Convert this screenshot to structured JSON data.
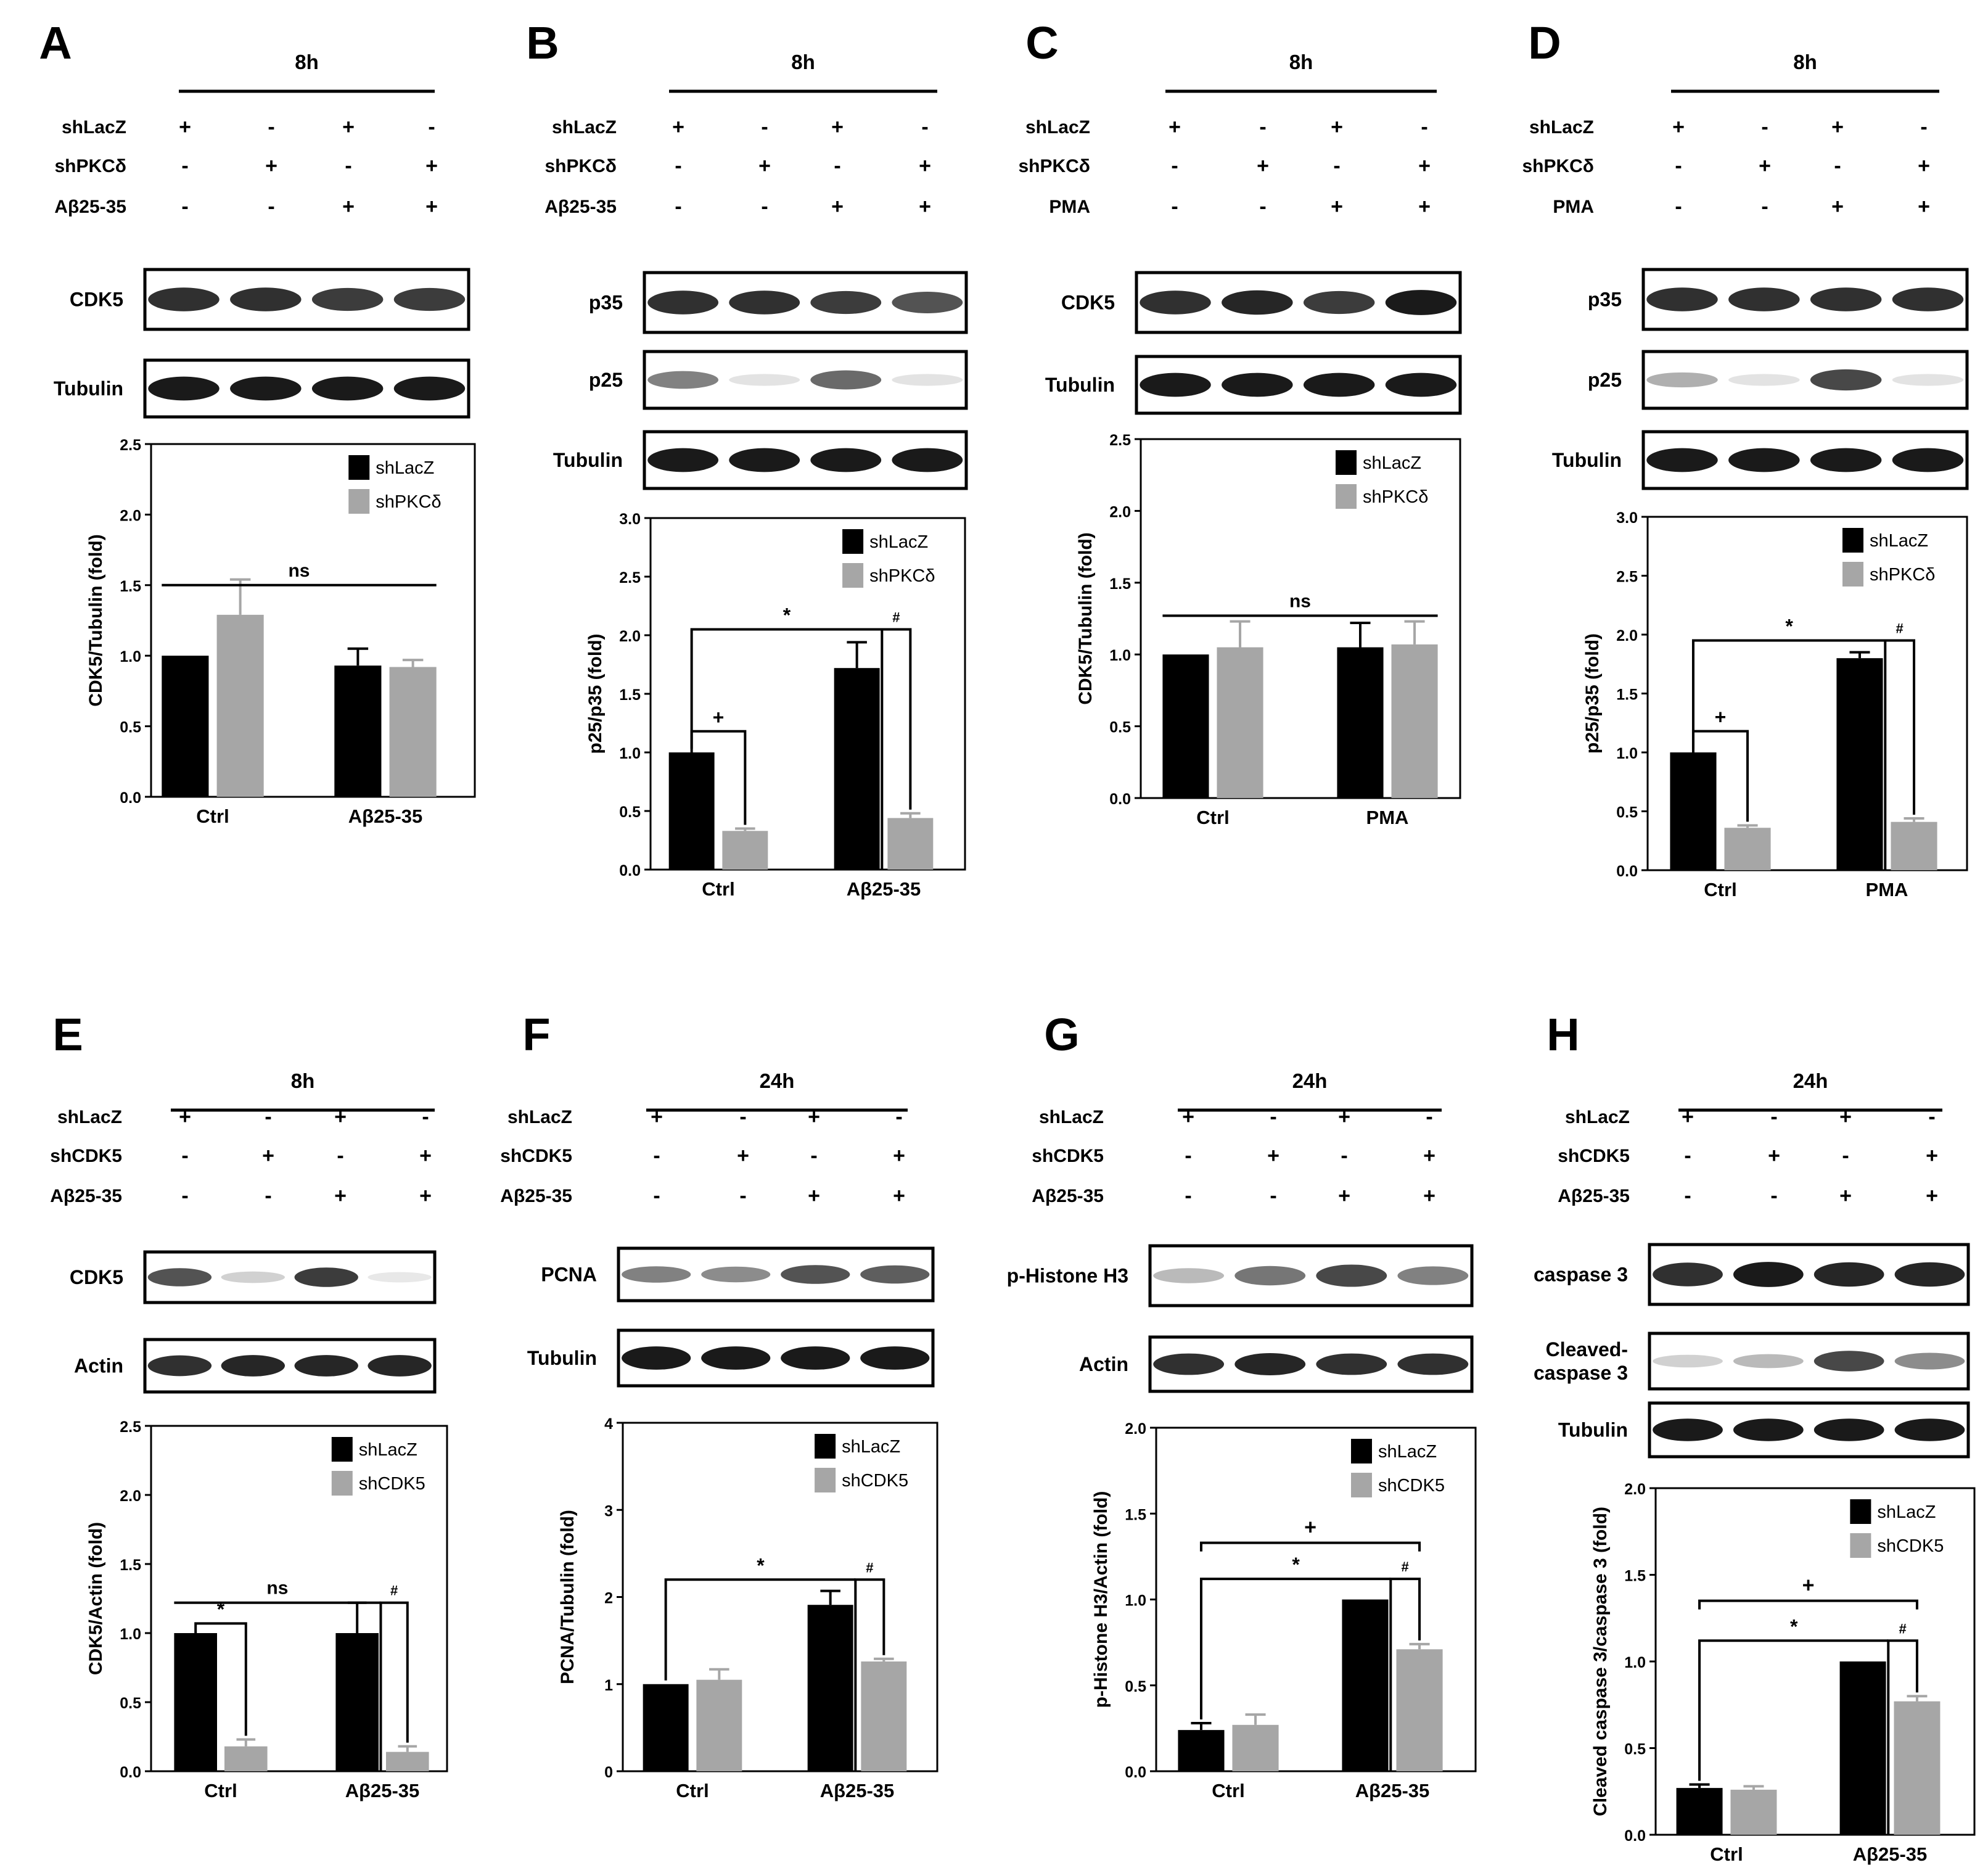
{
  "figure": {
    "colors": {
      "shLacZ": "#000000",
      "knockdown": "#a6a6a6",
      "frame": "#000000",
      "band": "#1a1a1a",
      "background": "#ffffff"
    },
    "symbols": {
      "plus": "+",
      "minus": "-"
    }
  },
  "panels": [
    {
      "letter": "A",
      "time": "8h",
      "conditions": [
        {
          "label": "shLacZ",
          "signs": [
            "+",
            "-",
            "+",
            "-"
          ]
        },
        {
          "label": "shPKCδ",
          "signs": [
            "-",
            "+",
            "-",
            "+"
          ]
        },
        {
          "label": "Aβ25-35",
          "signs": [
            "-",
            "-",
            "+",
            "+"
          ]
        }
      ],
      "blots": [
        {
          "label": "CDK5",
          "bands": [
            0.9,
            0.9,
            0.85,
            0.85
          ]
        },
        {
          "label": "Tubulin",
          "bands": [
            1.0,
            1.0,
            1.0,
            1.0
          ]
        }
      ]
    },
    {
      "letter": "B",
      "time": "8h",
      "conditions": [
        {
          "label": "shLacZ",
          "signs": [
            "+",
            "-",
            "+",
            "-"
          ]
        },
        {
          "label": "shPKCδ",
          "signs": [
            "-",
            "+",
            "-",
            "+"
          ]
        },
        {
          "label": "Aβ25-35",
          "signs": [
            "-",
            "-",
            "+",
            "+"
          ]
        }
      ],
      "blots": [
        {
          "label": "p35",
          "bands": [
            0.9,
            0.9,
            0.85,
            0.75
          ]
        },
        {
          "label": "p25",
          "bands": [
            0.55,
            0.12,
            0.65,
            0.12
          ]
        },
        {
          "label": "Tubulin",
          "bands": [
            1.0,
            1.0,
            1.0,
            1.0
          ]
        }
      ]
    },
    {
      "letter": "C",
      "time": "8h",
      "conditions": [
        {
          "label": "shLacZ",
          "signs": [
            "+",
            "-",
            "+",
            "-"
          ]
        },
        {
          "label": "shPKCδ",
          "signs": [
            "-",
            "+",
            "-",
            "+"
          ]
        },
        {
          "label": "PMA",
          "signs": [
            "-",
            "-",
            "+",
            "+"
          ]
        }
      ],
      "blots": [
        {
          "label": "CDK5",
          "bands": [
            0.9,
            0.95,
            0.85,
            1.0
          ]
        },
        {
          "label": "Tubulin",
          "bands": [
            1.0,
            1.0,
            1.0,
            1.0
          ]
        }
      ]
    },
    {
      "letter": "D",
      "time": "8h",
      "conditions": [
        {
          "label": "shLacZ",
          "signs": [
            "+",
            "-",
            "+",
            "-"
          ]
        },
        {
          "label": "shPKCδ",
          "signs": [
            "-",
            "+",
            "-",
            "+"
          ]
        },
        {
          "label": "PMA",
          "signs": [
            "-",
            "-",
            "+",
            "+"
          ]
        }
      ],
      "blots": [
        {
          "label": "p35",
          "bands": [
            0.9,
            0.9,
            0.9,
            0.9
          ]
        },
        {
          "label": "p25",
          "bands": [
            0.35,
            0.12,
            0.8,
            0.12
          ]
        },
        {
          "label": "Tubulin",
          "bands": [
            1.0,
            1.0,
            1.0,
            1.0
          ]
        }
      ]
    },
    {
      "letter": "E",
      "time": "8h",
      "conditions": [
        {
          "label": "shLacZ",
          "signs": [
            "+",
            "-",
            "+",
            "-"
          ]
        },
        {
          "label": "shCDK5",
          "signs": [
            "-",
            "+",
            "-",
            "+"
          ]
        },
        {
          "label": "Aβ25-35",
          "signs": [
            "-",
            "-",
            "+",
            "+"
          ]
        }
      ],
      "blots": [
        {
          "label": "CDK5",
          "bands": [
            0.75,
            0.2,
            0.85,
            0.1
          ]
        },
        {
          "label": "Actin",
          "bands": [
            0.9,
            0.95,
            0.95,
            0.95
          ]
        }
      ]
    },
    {
      "letter": "F",
      "time": "24h",
      "conditions": [
        {
          "label": "shLacZ",
          "signs": [
            "+",
            "-",
            "+",
            "-"
          ]
        },
        {
          "label": "shCDK5",
          "signs": [
            "-",
            "+",
            "-",
            "+"
          ]
        },
        {
          "label": "Aβ25-35",
          "signs": [
            "-",
            "-",
            "+",
            "+"
          ]
        }
      ],
      "blots": [
        {
          "label": "PCNA",
          "bands": [
            0.55,
            0.5,
            0.75,
            0.7
          ]
        },
        {
          "label": "Tubulin",
          "bands": [
            1.0,
            1.0,
            1.0,
            1.0
          ]
        }
      ]
    },
    {
      "letter": "G",
      "time": "24h",
      "conditions": [
        {
          "label": "shLacZ",
          "signs": [
            "+",
            "-",
            "+",
            "-"
          ]
        },
        {
          "label": "shCDK5",
          "signs": [
            "-",
            "+",
            "-",
            "+"
          ]
        },
        {
          "label": "Aβ25-35",
          "signs": [
            "-",
            "-",
            "+",
            "+"
          ]
        }
      ],
      "blots": [
        {
          "label": "p-Histone H3",
          "bands": [
            0.3,
            0.6,
            0.8,
            0.55
          ]
        },
        {
          "label": "Actin",
          "bands": [
            0.9,
            0.95,
            0.9,
            0.9
          ]
        }
      ]
    },
    {
      "letter": "H",
      "time": "24h",
      "conditions": [
        {
          "label": "shLacZ",
          "signs": [
            "+",
            "-",
            "+",
            "-"
          ]
        },
        {
          "label": "shCDK5",
          "signs": [
            "-",
            "+",
            "-",
            "+"
          ]
        },
        {
          "label": "Aβ25-35",
          "signs": [
            "-",
            "-",
            "+",
            "+"
          ]
        }
      ],
      "blots": [
        {
          "label": "caspase 3",
          "bands": [
            0.9,
            1.0,
            0.95,
            0.95
          ]
        },
        {
          "label": "Cleaved-\ncaspase 3",
          "bands": [
            0.2,
            0.3,
            0.8,
            0.5
          ]
        },
        {
          "label": "Tubulin",
          "bands": [
            1.0,
            1.0,
            1.0,
            1.0
          ]
        }
      ]
    }
  ],
  "chart_data": [
    {
      "panel": "A",
      "type": "bar",
      "categories": [
        "Ctrl",
        "Aβ25-35"
      ],
      "ylabel": "CDK5/Tubulin (fold)",
      "ylim": [
        0,
        2.5
      ],
      "yticks": [
        "0.0",
        "0.5",
        "1.0",
        "1.5",
        "2.0",
        "2.5"
      ],
      "legend_position": "top-right",
      "series": [
        {
          "name": "shLacZ",
          "values": [
            1.0,
            0.93
          ],
          "errors": [
            0,
            0.12
          ]
        },
        {
          "name": "shPKCδ",
          "values": [
            1.29,
            0.92
          ],
          "errors": [
            0.25,
            0.05
          ]
        }
      ],
      "annotations": [
        {
          "text": "ns"
        }
      ]
    },
    {
      "panel": "B",
      "type": "bar",
      "categories": [
        "Ctrl",
        "Aβ25-35"
      ],
      "ylabel": "p25/p35 (fold)",
      "ylim": [
        0,
        3.0
      ],
      "yticks": [
        "0.0",
        "0.5",
        "1.0",
        "1.5",
        "2.0",
        "2.5",
        "3.0"
      ],
      "legend_position": "top-right",
      "series": [
        {
          "name": "shLacZ",
          "values": [
            1.0,
            1.72
          ],
          "errors": [
            0,
            0.22
          ]
        },
        {
          "name": "shPKCδ",
          "values": [
            0.33,
            0.44
          ],
          "errors": [
            0.02,
            0.04
          ]
        }
      ],
      "annotations": [
        {
          "text": "+"
        },
        {
          "text": "*"
        },
        {
          "text": "#"
        }
      ]
    },
    {
      "panel": "C",
      "type": "bar",
      "categories": [
        "Ctrl",
        "PMA"
      ],
      "ylabel": "CDK5/Tubulin (fold)",
      "ylim": [
        0,
        2.5
      ],
      "yticks": [
        "0.0",
        "0.5",
        "1.0",
        "1.5",
        "2.0",
        "2.5"
      ],
      "legend_position": "top-right",
      "series": [
        {
          "name": "shLacZ",
          "values": [
            1.0,
            1.05
          ],
          "errors": [
            0,
            0.17
          ]
        },
        {
          "name": "shPKCδ",
          "values": [
            1.05,
            1.07
          ],
          "errors": [
            0.18,
            0.16
          ]
        }
      ],
      "annotations": [
        {
          "text": "ns"
        }
      ]
    },
    {
      "panel": "D",
      "type": "bar",
      "categories": [
        "Ctrl",
        "PMA"
      ],
      "ylabel": "p25/p35 (fold)",
      "ylim": [
        0,
        3.0
      ],
      "yticks": [
        "0.0",
        "0.5",
        "1.0",
        "1.5",
        "2.0",
        "2.5",
        "3.0"
      ],
      "legend_position": "top-right",
      "series": [
        {
          "name": "shLacZ",
          "values": [
            1.0,
            1.8
          ],
          "errors": [
            0,
            0.05
          ]
        },
        {
          "name": "shPKCδ",
          "values": [
            0.36,
            0.41
          ],
          "errors": [
            0.02,
            0.03
          ]
        }
      ],
      "annotations": [
        {
          "text": "+"
        },
        {
          "text": "*"
        },
        {
          "text": "#"
        }
      ]
    },
    {
      "panel": "E",
      "type": "bar",
      "categories": [
        "Ctrl",
        "Aβ25-35"
      ],
      "ylabel": "CDK5/Actin (fold)",
      "ylim": [
        0,
        2.5
      ],
      "yticks": [
        "0.0",
        "0.5",
        "1.0",
        "1.5",
        "2.0",
        "2.5"
      ],
      "legend_position": "top-right",
      "series": [
        {
          "name": "shLacZ",
          "values": [
            1.0,
            1.0
          ],
          "errors": [
            0,
            0.22
          ]
        },
        {
          "name": "shCDK5",
          "values": [
            0.18,
            0.14
          ],
          "errors": [
            0.05,
            0.04
          ]
        }
      ],
      "annotations": [
        {
          "text": "ns"
        },
        {
          "text": "*"
        },
        {
          "text": "#"
        }
      ]
    },
    {
      "panel": "F",
      "type": "bar",
      "categories": [
        "Ctrl",
        "Aβ25-35"
      ],
      "ylabel": "PCNA/Tubulin (fold)",
      "ylim": [
        0,
        4
      ],
      "yticks": [
        "0",
        "1",
        "2",
        "3",
        "4"
      ],
      "legend_position": "top-right",
      "series": [
        {
          "name": "shLacZ",
          "values": [
            1.0,
            1.91
          ],
          "errors": [
            0,
            0.16
          ]
        },
        {
          "name": "shCDK5",
          "values": [
            1.05,
            1.26
          ],
          "errors": [
            0.12,
            0.03
          ]
        }
      ],
      "annotations": [
        {
          "text": "*"
        },
        {
          "text": "#"
        }
      ]
    },
    {
      "panel": "G",
      "type": "bar",
      "categories": [
        "Ctrl",
        "Aβ25-35"
      ],
      "ylabel": "p-Histone H3/Actin (fold)",
      "ylim": [
        0,
        2.0
      ],
      "yticks": [
        "0.0",
        "0.5",
        "1.0",
        "1.5",
        "2.0"
      ],
      "legend_position": "top-right",
      "series": [
        {
          "name": "shLacZ",
          "values": [
            0.24,
            1.0
          ],
          "errors": [
            0.04,
            0
          ]
        },
        {
          "name": "shCDK5",
          "values": [
            0.27,
            0.71
          ],
          "errors": [
            0.06,
            0.03
          ]
        }
      ],
      "annotations": [
        {
          "text": "+"
        },
        {
          "text": "*"
        },
        {
          "text": "#"
        }
      ]
    },
    {
      "panel": "H",
      "type": "bar",
      "categories": [
        "Ctrl",
        "Aβ25-35"
      ],
      "ylabel": "Cleaved caspase 3/caspase 3 (fold)",
      "ylim": [
        0,
        2.0
      ],
      "yticks": [
        "0.0",
        "0.5",
        "1.0",
        "1.5",
        "2.0"
      ],
      "legend_position": "top-right",
      "series": [
        {
          "name": "shLacZ",
          "values": [
            0.27,
            1.0
          ],
          "errors": [
            0.02,
            0
          ]
        },
        {
          "name": "shCDK5",
          "values": [
            0.26,
            0.77
          ],
          "errors": [
            0.02,
            0.03
          ]
        }
      ],
      "annotations": [
        {
          "text": "+"
        },
        {
          "text": "*"
        },
        {
          "text": "#"
        }
      ]
    }
  ]
}
